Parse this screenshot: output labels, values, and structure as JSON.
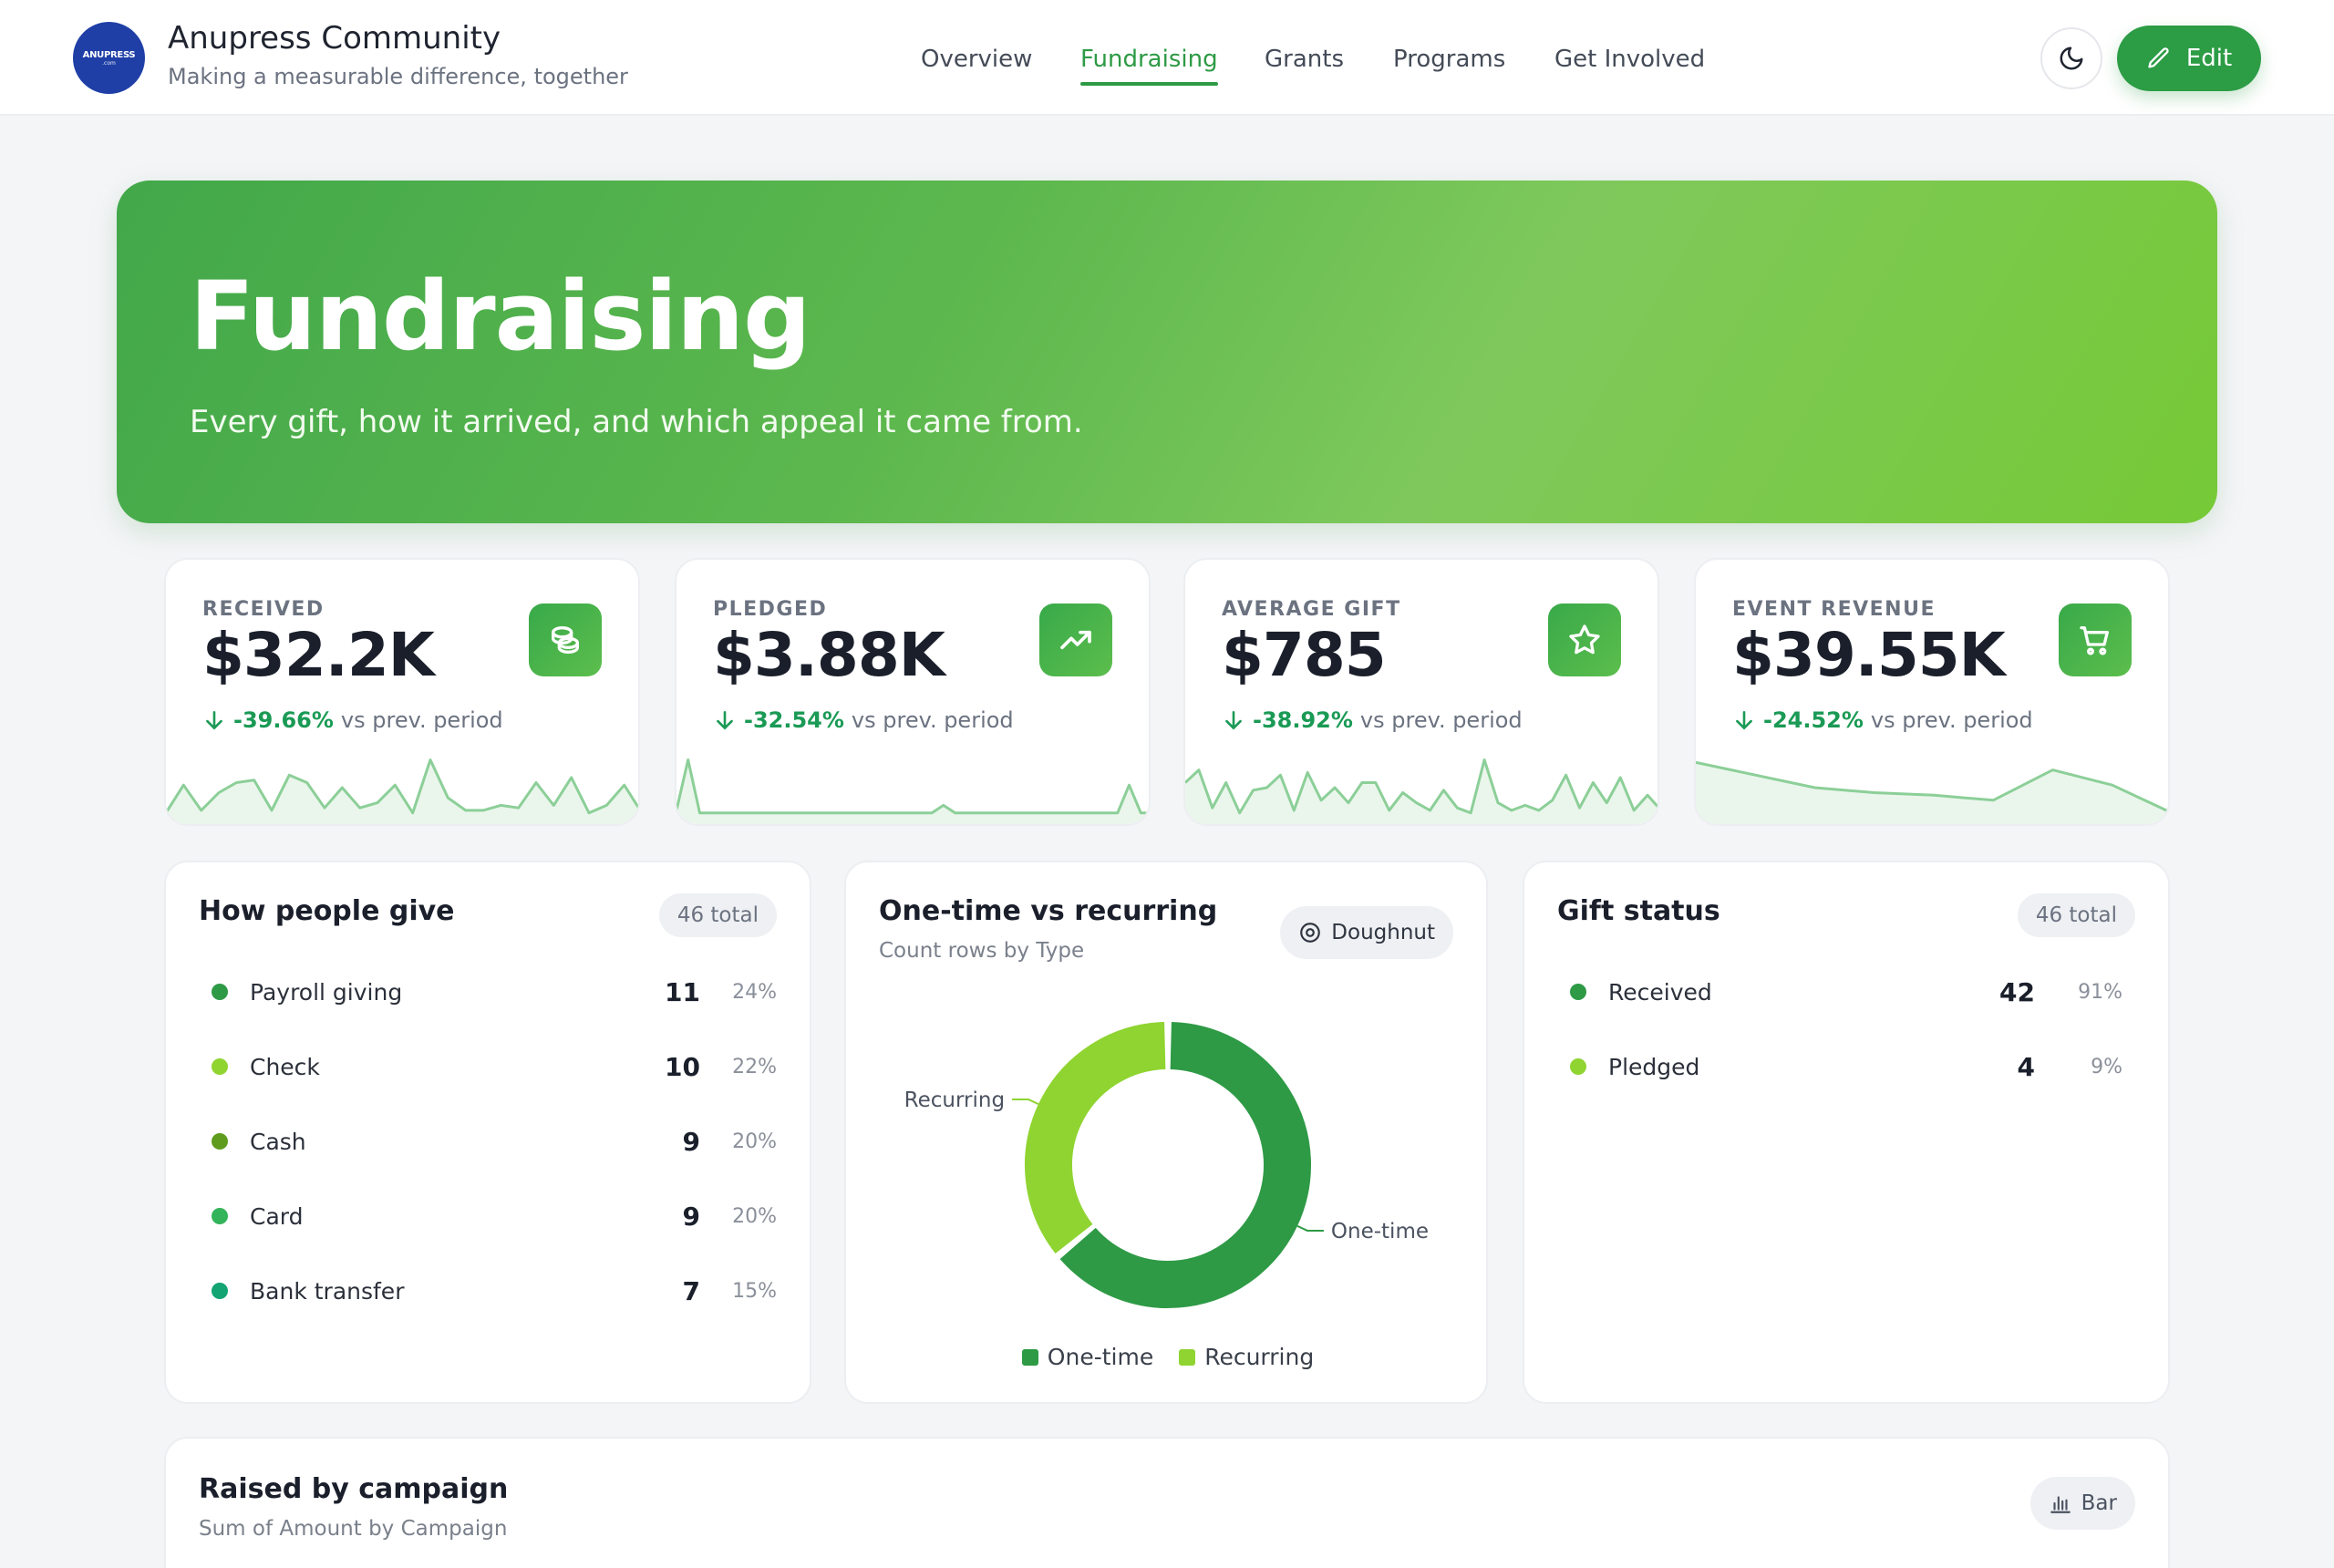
{
  "header": {
    "logo_text": "ANUPRESS",
    "logo_sub": ".com",
    "brand_name": "Anupress Community",
    "tagline": "Making a measurable difference, together",
    "nav": [
      {
        "label": "Overview",
        "active": false
      },
      {
        "label": "Fundraising",
        "active": true
      },
      {
        "label": "Grants",
        "active": false
      },
      {
        "label": "Programs",
        "active": false
      },
      {
        "label": "Get Involved",
        "active": false
      }
    ],
    "edit_label": "Edit"
  },
  "hero": {
    "title": "Fundraising",
    "subtitle": "Every gift, how it arrived, and which appeal it came from."
  },
  "kpis": [
    {
      "label": "RECEIVED",
      "value": "$32.2K",
      "delta": "-39.66%",
      "delta_suffix": "vs prev. period",
      "icon": "coins-icon",
      "spark": [
        6,
        28,
        8,
        22,
        30,
        32,
        8,
        36,
        30,
        10,
        26,
        10,
        14,
        28,
        6,
        48,
        18,
        8,
        8,
        12,
        10,
        30,
        12,
        34,
        6,
        12,
        28,
        6
      ]
    },
    {
      "label": "PLEDGED",
      "value": "$3.88K",
      "delta": "-32.54%",
      "delta_suffix": "vs prev. period",
      "icon": "trending-up-icon",
      "spark": [
        8,
        48,
        6,
        6,
        6,
        6,
        6,
        6,
        6,
        6,
        6,
        6,
        6,
        6,
        6,
        6,
        6,
        6,
        6,
        6,
        6,
        6,
        6,
        12,
        6,
        6,
        6,
        6,
        6,
        6,
        6,
        6,
        6,
        6,
        6,
        6,
        6,
        6,
        6,
        28,
        6,
        6
      ]
    },
    {
      "label": "AVERAGE GIFT",
      "value": "$785",
      "delta": "-38.92%",
      "delta_suffix": "vs prev. period",
      "icon": "star-icon",
      "spark": [
        30,
        40,
        10,
        30,
        6,
        24,
        26,
        36,
        8,
        38,
        16,
        26,
        14,
        30,
        30,
        8,
        22,
        14,
        8,
        24,
        10,
        6,
        48,
        14,
        8,
        12,
        8,
        16,
        36,
        10,
        30,
        14,
        34,
        8,
        20,
        8
      ]
    },
    {
      "label": "EVENT REVENUE",
      "value": "$39.55K",
      "delta": "-24.52%",
      "delta_suffix": "vs prev. period",
      "icon": "cart-icon",
      "spark": [
        46,
        36,
        26,
        22,
        20,
        16,
        40,
        28,
        6
      ]
    }
  ],
  "how_people_give": {
    "title": "How people give",
    "total": "46 total",
    "rows": [
      {
        "name": "Payroll giving",
        "count": "11",
        "pct": "24%",
        "color": "#2e9a45"
      },
      {
        "name": "Check",
        "count": "10",
        "pct": "22%",
        "color": "#8fd431"
      },
      {
        "name": "Cash",
        "count": "9",
        "pct": "20%",
        "color": "#5f9c1e"
      },
      {
        "name": "Card",
        "count": "9",
        "pct": "20%",
        "color": "#34b45a"
      },
      {
        "name": "Bank transfer",
        "count": "7",
        "pct": "15%",
        "color": "#14a372"
      }
    ]
  },
  "one_time_vs_recurring": {
    "title": "One-time vs recurring",
    "subtitle": "Count rows by Type",
    "chart_toggle": "Doughnut",
    "chart_data": {
      "type": "pie",
      "labels": [
        "One-time",
        "Recurring"
      ],
      "values": [
        64,
        36
      ],
      "colors": [
        "#2e9a45",
        "#8fd431"
      ],
      "legend": "bottom"
    }
  },
  "gift_status": {
    "title": "Gift status",
    "total": "46 total",
    "rows": [
      {
        "name": "Received",
        "count": "42",
        "pct": "91%",
        "color": "#2e9a45"
      },
      {
        "name": "Pledged",
        "count": "4",
        "pct": "9%",
        "color": "#8fd431"
      }
    ]
  },
  "raised_by_campaign": {
    "title": "Raised by campaign",
    "subtitle": "Sum of Amount by Campaign",
    "chart_toggle": "Bar"
  },
  "colors": {
    "accent": "#2e9a45",
    "accent_light": "#8fd431",
    "delta_negative": "#1a9a55",
    "spark_line": "#8ccf98"
  }
}
